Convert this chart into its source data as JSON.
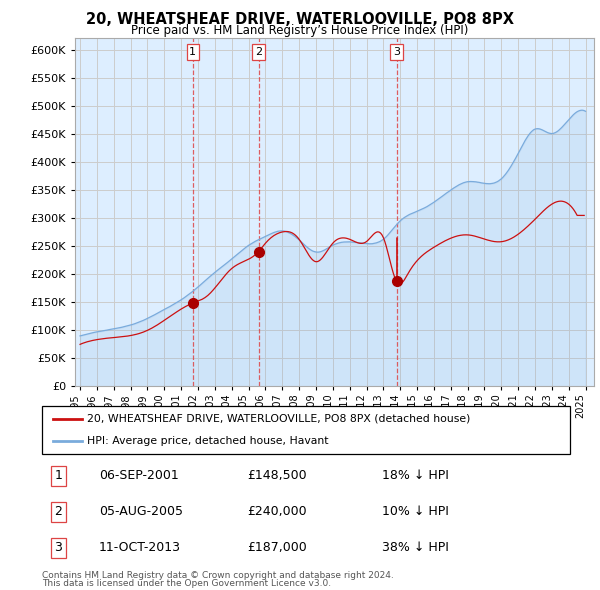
{
  "title": "20, WHEATSHEAF DRIVE, WATERLOOVILLE, PO8 8PX",
  "subtitle": "Price paid vs. HM Land Registry’s House Price Index (HPI)",
  "hpi_color": "#7aabdc",
  "hpi_fill": "#ddeeff",
  "price_color": "#cc1111",
  "marker_color": "#aa0000",
  "vline_color": "#dd4444",
  "background_color": "#ffffff",
  "grid_color": "#cccccc",
  "legend_label_price": "20, WHEATSHEAF DRIVE, WATERLOOVILLE, PO8 8PX (detached house)",
  "legend_label_hpi": "HPI: Average price, detached house, Havant",
  "transactions": [
    {
      "num": 1,
      "date": "06-SEP-2001",
      "price": 148500,
      "pct": "18%",
      "dir": "↓",
      "x_year": 2001.69
    },
    {
      "num": 2,
      "date": "05-AUG-2005",
      "price": 240000,
      "pct": "10%",
      "dir": "↓",
      "x_year": 2005.59
    },
    {
      "num": 3,
      "date": "11-OCT-2013",
      "price": 187000,
      "pct": "38%",
      "dir": "↓",
      "x_year": 2013.78
    }
  ],
  "footnote1": "Contains HM Land Registry data © Crown copyright and database right 2024.",
  "footnote2": "This data is licensed under the Open Government Licence v3.0.",
  "ylim": [
    0,
    620000
  ],
  "yticks": [
    0,
    50000,
    100000,
    150000,
    200000,
    250000,
    300000,
    350000,
    400000,
    450000,
    500000,
    550000,
    600000
  ],
  "xlim": [
    1994.7,
    2025.5
  ],
  "xticks": [
    1995,
    1996,
    1997,
    1998,
    1999,
    2000,
    2001,
    2002,
    2003,
    2004,
    2005,
    2006,
    2007,
    2008,
    2009,
    2010,
    2011,
    2012,
    2013,
    2014,
    2015,
    2016,
    2017,
    2018,
    2019,
    2020,
    2021,
    2022,
    2023,
    2024,
    2025
  ]
}
